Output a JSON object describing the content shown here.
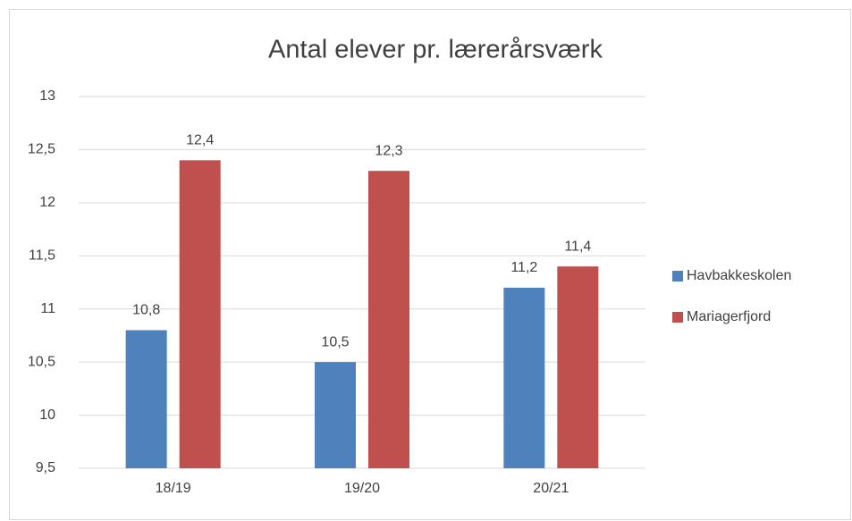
{
  "chart_data": {
    "type": "bar",
    "title": "Antal elever pr. lærerårsværk",
    "categories": [
      "18/19",
      "19/20",
      "20/21"
    ],
    "series": [
      {
        "name": "Havbakkeskolen",
        "color": "#4f81bd",
        "values": [
          10.8,
          10.5,
          11.2
        ],
        "value_labels": [
          "10,8",
          "10,5",
          "11,2"
        ]
      },
      {
        "name": "Mariagerfjord",
        "color": "#c0504d",
        "values": [
          12.4,
          12.3,
          11.4
        ],
        "value_labels": [
          "12,4",
          "12,3",
          "11,4"
        ]
      }
    ],
    "ylim": [
      9.5,
      13
    ],
    "yticks": [
      {
        "value": 9.5,
        "label": "9,5"
      },
      10,
      {
        "value": 10.5,
        "label": "10,5"
      },
      11,
      {
        "value": 11.5,
        "label": "11,5"
      },
      12,
      {
        "value": 12.5,
        "label": "12,5"
      },
      13
    ],
    "grid": true,
    "legend": "right"
  }
}
